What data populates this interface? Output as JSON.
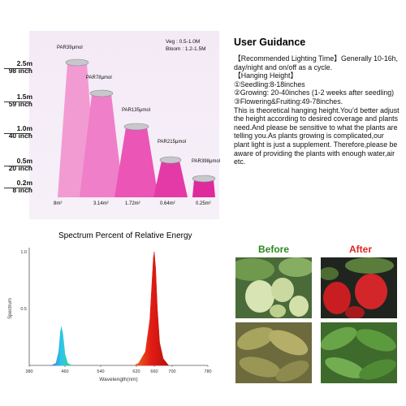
{
  "hanging_chart": {
    "heights": [
      {
        "meter": "2.5m",
        "inch": "98 inch"
      },
      {
        "meter": "1.5m",
        "inch": "59 inch"
      },
      {
        "meter": "1.0m",
        "inch": "40 inch"
      },
      {
        "meter": "0.5m",
        "inch": "20 inch"
      },
      {
        "meter": "0.2m",
        "inch": "8 inch"
      }
    ],
    "par": [
      "PAR39μmol",
      "PAR78μmol",
      "PAR135μmol",
      "PAR215μmol",
      "PAR398μmol"
    ],
    "areas": [
      "8m²",
      "3.14m²",
      "1.72m²",
      "0.64m²",
      "0.25m²"
    ],
    "veg": "Veg : 0.5-1.0M",
    "bloom": "Bloom : 1.2-1.5M",
    "colors": [
      "#f29bd3",
      "#ef7fc8",
      "#ea55b6",
      "#e43aa8",
      "#de2a9d"
    ]
  },
  "guidance": {
    "title": "User Guidance",
    "lines": [
      "【Recommended Lighting Time】Generally 10-16h, day/night  and on/off as a cycle.",
      "【Hanging Height】",
      "①Seedling:8-18inches",
      "②Growing: 20-40inches (1-2 weeks after seedling)",
      "③Flowering&Fruiting:49-78inches.",
      "This is theoretical hanging height.You’d better adjust the height according to desired coverage and plants need.And please be sensitive to what the plants are telling you.As plants growing is complicated,our plant light is just  a supplement. Therefore,please be aware of providing the plants with enough water,air etc."
    ]
  },
  "chart_data": {
    "type": "area",
    "title": "Spectrum  Percent of Relative Energy",
    "xlabel": "Wavelength(nm)",
    "ylabel": "Spectrum",
    "xlim": [
      380,
      780
    ],
    "ylim": [
      0,
      1.0
    ],
    "x_ticks": [
      380,
      460,
      540,
      620,
      660,
      700,
      780
    ],
    "y_ticks": [
      "1.0",
      "0.5"
    ],
    "series": [
      {
        "peak_nm": 452,
        "values": [
          [
            430,
            0
          ],
          [
            440,
            0.02
          ],
          [
            446,
            0.12
          ],
          [
            450,
            0.3
          ],
          [
            452,
            0.34
          ],
          [
            455,
            0.28
          ],
          [
            460,
            0.1
          ],
          [
            466,
            0.02
          ],
          [
            475,
            0
          ]
        ]
      },
      {
        "peak_nm": 660,
        "values": [
          [
            615,
            0
          ],
          [
            625,
            0.02
          ],
          [
            640,
            0.12
          ],
          [
            650,
            0.4
          ],
          [
            655,
            0.75
          ],
          [
            658,
            0.95
          ],
          [
            660,
            1.0
          ],
          [
            663,
            0.85
          ],
          [
            667,
            0.5
          ],
          [
            672,
            0.2
          ],
          [
            680,
            0.06
          ],
          [
            692,
            0
          ]
        ]
      }
    ]
  },
  "comparison": {
    "before": "Before",
    "after": "After"
  }
}
